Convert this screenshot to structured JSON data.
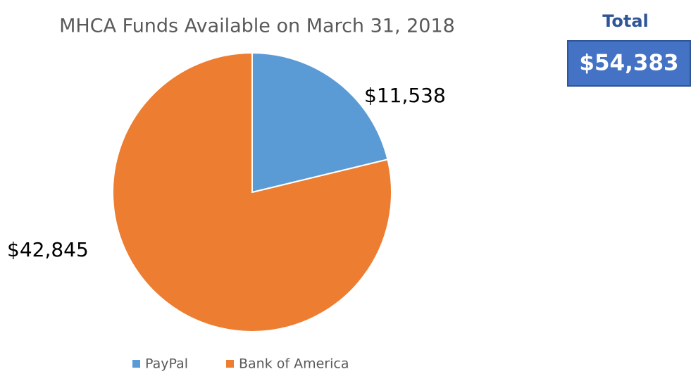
{
  "chart_data": {
    "type": "pie",
    "title": "MHCA Funds Available on March 31, 2018",
    "categories": [
      "PayPal",
      "Bank of America"
    ],
    "values": [
      11538,
      42845
    ],
    "value_labels": [
      "$11,538",
      "$42,845"
    ],
    "colors": [
      "#5b9bd5",
      "#ed7d31"
    ],
    "legend": "bottom",
    "total": {
      "title": "Total",
      "value": 54383,
      "label": "$54,383"
    }
  }
}
